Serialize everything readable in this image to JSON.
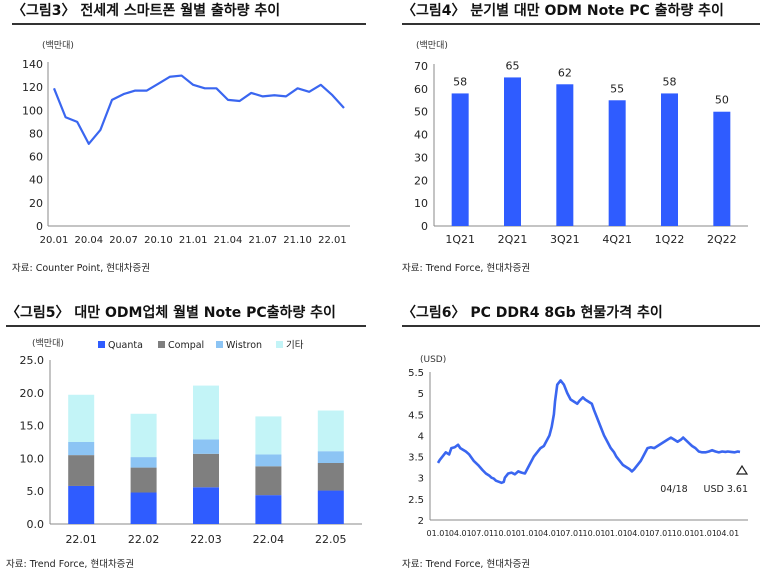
{
  "panels": {
    "p1": {
      "title": "〈그림3〉 전세계 스마트폰 월별 출하량 추이",
      "source": "자료: Counter Point, 현대차증권"
    },
    "p2": {
      "title": "〈그림4〉 분기별 대만 ODM Note PC 출하량 추이",
      "source": "자료: Trend Force, 현대차증권"
    },
    "p3": {
      "title": "〈그림5〉 대만 ODM업체 월별 Note PC출하량 추이",
      "source": "자료: Trend Force, 현대차증권"
    },
    "p4": {
      "title": "〈그림6〉 PC DDR4 8Gb 현물가격 추이",
      "source": "자료: Trend Force, 현대차증권"
    }
  },
  "colors": {
    "line": "#3a66f0",
    "bar": "#2f5cff",
    "quanta": "#2f5cff",
    "compal": "#7f7f7f",
    "wistron": "#8cc4f4",
    "other": "#c3f4f7"
  },
  "chart_data": [
    {
      "type": "line",
      "ylabel": "(백만대)",
      "ylim": [
        0,
        140
      ],
      "yticks": [
        0,
        20,
        40,
        60,
        80,
        100,
        120,
        140
      ],
      "xticks": [
        "20.01",
        "20.04",
        "20.07",
        "20.10",
        "21.01",
        "21.04",
        "21.07",
        "21.10",
        "22.01"
      ],
      "x": [
        "20.01",
        "20.02",
        "20.03",
        "20.04",
        "20.05",
        "20.06",
        "20.07",
        "20.08",
        "20.09",
        "20.10",
        "20.11",
        "20.12",
        "21.01",
        "21.02",
        "21.03",
        "21.04",
        "21.05",
        "21.06",
        "21.07",
        "21.08",
        "21.09",
        "21.10",
        "21.11",
        "21.12",
        "22.01",
        "22.02"
      ],
      "values": [
        119,
        94,
        90,
        71,
        83,
        109,
        114,
        117,
        117,
        123,
        129,
        130,
        122,
        119,
        119,
        109,
        108,
        115,
        112,
        113,
        112,
        119,
        116,
        122,
        113,
        102
      ],
      "grid": false
    },
    {
      "type": "bar",
      "ylabel": "(백만대)",
      "ylim": [
        0,
        70
      ],
      "yticks": [
        0,
        10,
        20,
        30,
        40,
        50,
        60,
        70
      ],
      "categories": [
        "1Q21",
        "2Q21",
        "3Q21",
        "4Q21",
        "1Q22",
        "2Q22"
      ],
      "values": [
        58,
        65,
        62,
        55,
        58,
        50
      ],
      "data_labels": [
        "58",
        "65",
        "62",
        "55",
        "58",
        "50"
      ],
      "grid": false
    },
    {
      "type": "bar",
      "stacked": true,
      "ylabel": "(백만대)",
      "ylim": [
        0,
        25
      ],
      "yticks": [
        "0.0",
        "5.0",
        "10.0",
        "15.0",
        "20.0",
        "25.0"
      ],
      "categories": [
        "22.01",
        "22.02",
        "22.03",
        "22.04",
        "22.05"
      ],
      "series": [
        {
          "name": "Quanta",
          "values": [
            5.8,
            4.8,
            5.6,
            4.4,
            5.1
          ]
        },
        {
          "name": "Compal",
          "values": [
            4.7,
            3.8,
            5.1,
            4.4,
            4.2
          ]
        },
        {
          "name": "Wistron",
          "values": [
            2.0,
            1.6,
            2.2,
            1.8,
            1.8
          ]
        },
        {
          "name": "기타",
          "values": [
            7.2,
            6.6,
            8.2,
            5.8,
            6.2
          ]
        }
      ],
      "legend": "top",
      "grid": false
    },
    {
      "type": "line",
      "ylabel": "(USD)",
      "ylim": [
        2,
        5.5
      ],
      "yticks": [
        "2",
        "2.5",
        "3",
        "3.5",
        "4",
        "4.5",
        "5",
        "5.5"
      ],
      "xticks": [
        "01.01",
        "04.01",
        "07.01",
        "10.01",
        "01.01",
        "04.01",
        "07.01",
        "10.01",
        "01.01",
        "04.01",
        "07.01",
        "10.01",
        "01.01",
        "04.01"
      ],
      "x": [
        0,
        0.08,
        0.2,
        0.35,
        0.5,
        0.6,
        0.75,
        0.9,
        1.0,
        1.25,
        1.4,
        1.6,
        1.8,
        2.0,
        2.15,
        2.3,
        2.4,
        2.5,
        2.6,
        2.75,
        2.85,
        2.95,
        3.0,
        3.15,
        3.3,
        3.45,
        3.6,
        3.75,
        3.9,
        4.0,
        4.15,
        4.3,
        4.45,
        4.6,
        4.75,
        4.85,
        5.0,
        5.1,
        5.2,
        5.25,
        5.35,
        5.5,
        5.65,
        5.8,
        5.95,
        6.1,
        6.25,
        6.35,
        6.5,
        6.6,
        6.75,
        6.9,
        7.0,
        7.15,
        7.3,
        7.45,
        7.6,
        7.75,
        7.9,
        8.0,
        8.15,
        8.3,
        8.45,
        8.6,
        8.7,
        8.8,
        8.95,
        9.1,
        9.25,
        9.4,
        9.55,
        9.7,
        9.85,
        10.0,
        10.15,
        10.3,
        10.45,
        10.6,
        10.75,
        10.9,
        11.0,
        11.1,
        11.2,
        11.3,
        11.4,
        11.55,
        11.7,
        11.85,
        12.0,
        12.15,
        12.3,
        12.45,
        12.6,
        12.75,
        12.9,
        13.0,
        13.15,
        13.3,
        13.45,
        13.55
      ],
      "values": [
        3.35,
        3.42,
        3.5,
        3.6,
        3.55,
        3.7,
        3.72,
        3.78,
        3.7,
        3.62,
        3.55,
        3.4,
        3.3,
        3.18,
        3.1,
        3.05,
        3.0,
        2.98,
        2.93,
        2.9,
        2.88,
        2.9,
        3.0,
        3.1,
        3.12,
        3.08,
        3.15,
        3.12,
        3.1,
        3.2,
        3.35,
        3.5,
        3.6,
        3.7,
        3.75,
        3.85,
        4.0,
        4.2,
        4.5,
        4.8,
        5.2,
        5.3,
        5.2,
        5.0,
        4.85,
        4.8,
        4.75,
        4.82,
        4.9,
        4.85,
        4.8,
        4.75,
        4.6,
        4.4,
        4.2,
        4.0,
        3.85,
        3.7,
        3.6,
        3.5,
        3.4,
        3.3,
        3.25,
        3.2,
        3.15,
        3.2,
        3.3,
        3.4,
        3.55,
        3.7,
        3.72,
        3.7,
        3.75,
        3.8,
        3.85,
        3.9,
        3.95,
        3.9,
        3.85,
        3.9,
        3.95,
        3.9,
        3.85,
        3.8,
        3.75,
        3.7,
        3.62,
        3.6,
        3.6,
        3.62,
        3.65,
        3.62,
        3.6,
        3.62,
        3.61,
        3.62,
        3.61,
        3.6,
        3.62,
        3.61
      ],
      "annotation": {
        "date": "04/18",
        "value": "USD 3.61"
      },
      "grid": false
    }
  ]
}
